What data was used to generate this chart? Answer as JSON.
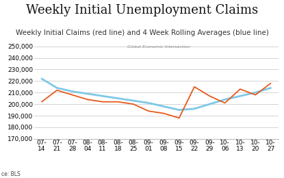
{
  "title": "Weekly Initial Unemployment Claims",
  "subtitle": "Weekly Initial Claims (red line) and 4 Week Rolling Averages (blue line)",
  "source_text": "ce: BLS",
  "x_labels": [
    "07-\n14",
    "07-\n21",
    "07-\n28",
    "08-\n04",
    "08-\n11",
    "08-\n18",
    "08-\n25",
    "09-\n01",
    "09-\n08",
    "09-\n15",
    "09-\n22",
    "09-\n29",
    "10-\n06",
    "10-\n13",
    "10-\n20",
    "10-\n27"
  ],
  "weekly_claims": [
    202000,
    212000,
    208000,
    204000,
    202000,
    202000,
    200000,
    194000,
    192000,
    188000,
    215000,
    207000,
    201000,
    213000,
    208000,
    218000
  ],
  "rolling_avg": [
    222000,
    214000,
    211000,
    209000,
    207000,
    205000,
    203000,
    201000,
    198000,
    195000,
    196000,
    200000,
    204000,
    207000,
    210000,
    214000
  ],
  "ylim_min": 170000,
  "ylim_max": 250000,
  "ytick_step": 10000,
  "red_color": "#e8581a",
  "blue_color": "#7ec8e8",
  "background_color": "#ffffff",
  "grid_color": "#cccccc",
  "title_fontsize": 13,
  "subtitle_fontsize": 7.5,
  "tick_fontsize": 6.5
}
